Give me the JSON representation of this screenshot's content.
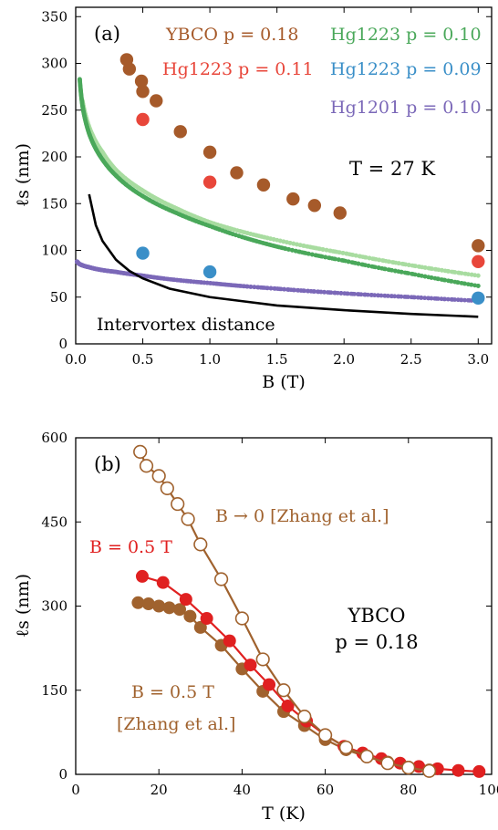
{
  "colors": {
    "ybco": "#a65a2a",
    "hg1223_011": "#e8463a",
    "hg1223_009": "#3a8fc8",
    "hg1223_010": "#4aa85a",
    "hg1223_010_light": "#a8dca0",
    "hg1201": "#7b68b8",
    "intervortex": "#000000",
    "ybco_b05": "#e02020",
    "zhang": "#a0622e"
  },
  "chart_data": [
    {
      "type": "scatter",
      "panel_label": "(a)",
      "xlabel": "B (T)",
      "ylabel": "ℓs (nm)",
      "xlim": [
        0,
        3.1
      ],
      "ylim": [
        0,
        360
      ],
      "x_ticks": [
        "0.0",
        "0.5",
        "1.0",
        "1.5",
        "2.0",
        "2.5",
        "3.0"
      ],
      "y_ticks": [
        "0",
        "50",
        "100",
        "150",
        "200",
        "250",
        "300",
        "350"
      ],
      "annotation": "T = 27 K",
      "curve_label": "Intervortex distance",
      "legend": [
        {
          "text": "YBCO p = 0.18",
          "color": "#a65a2a"
        },
        {
          "text": "Hg1223 p = 0.10",
          "color": "#4aa85a"
        },
        {
          "text": "Hg1223 p = 0.11",
          "color": "#e8463a"
        },
        {
          "text": "Hg1223 p = 0.09",
          "color": "#3a8fc8"
        },
        {
          "text": "Hg1201 p = 0.10",
          "color": "#7b68b8"
        }
      ],
      "series": [
        {
          "name": "YBCO p = 0.18",
          "kind": "points",
          "color": "#a65a2a",
          "x": [
            0.38,
            0.4,
            0.49,
            0.5,
            0.6,
            0.78,
            1.0,
            1.2,
            1.4,
            1.62,
            1.78,
            1.97,
            3.0
          ],
          "y": [
            304,
            294,
            281,
            270,
            260,
            227,
            205,
            183,
            170,
            155,
            148,
            140,
            105
          ]
        },
        {
          "name": "Hg1223 p = 0.11",
          "kind": "points",
          "color": "#e8463a",
          "x": [
            0.5,
            1.0,
            3.0
          ],
          "y": [
            240,
            173,
            88
          ]
        },
        {
          "name": "Hg1223 p = 0.09",
          "kind": "points",
          "color": "#3a8fc8",
          "x": [
            0.5,
            1.0,
            3.0
          ],
          "y": [
            97,
            77,
            49
          ]
        },
        {
          "name": "Hg1223 p = 0.10",
          "kind": "dense",
          "color": "#a8dca0",
          "x": [
            0.05,
            0.1,
            0.2,
            0.3,
            0.5,
            0.75,
            1.0,
            1.5,
            2.0,
            2.5,
            3.0
          ],
          "y": [
            260,
            232,
            205,
            186,
            164,
            145,
            130,
            111,
            97,
            84,
            73
          ]
        },
        {
          "name": "Hg1223 p = 0.10",
          "kind": "dense",
          "color": "#4aa85a",
          "x": [
            0.03,
            0.05,
            0.1,
            0.2,
            0.3,
            0.5,
            0.75,
            1.0,
            1.5,
            2.0,
            2.5,
            3.0
          ],
          "y": [
            283,
            255,
            225,
            197,
            180,
            158,
            140,
            126,
            104,
            89,
            75,
            62
          ]
        },
        {
          "name": "Hg1201 p = 0.10",
          "kind": "dense",
          "color": "#7b68b8",
          "x": [
            0.01,
            0.05,
            0.1,
            0.3,
            0.5,
            1.0,
            1.5,
            2.0,
            2.5,
            3.0
          ],
          "y": [
            88,
            84,
            82,
            77,
            73,
            65,
            59,
            54,
            50,
            46
          ]
        },
        {
          "name": "Intervortex distance",
          "kind": "line",
          "color": "#000000",
          "x": [
            0.1,
            0.15,
            0.2,
            0.3,
            0.4,
            0.5,
            0.7,
            1.0,
            1.5,
            2.0,
            2.5,
            3.0
          ],
          "y": [
            160,
            127,
            110,
            90,
            78,
            70,
            59,
            50,
            41,
            36,
            32,
            29
          ]
        }
      ]
    },
    {
      "type": "line",
      "panel_label": "(b)",
      "xlabel": "T (K)",
      "ylabel": "ℓs (nm)",
      "xlim": [
        0,
        100
      ],
      "ylim": [
        0,
        600
      ],
      "x_ticks": [
        "0",
        "20",
        "40",
        "60",
        "80",
        "100"
      ],
      "y_ticks": [
        "0",
        "150",
        "300",
        "450",
        "600"
      ],
      "annotation_line1": "YBCO",
      "annotation_line2": "p = 0.18",
      "labels": {
        "zhang_b0": "B → 0 [Zhang et al.]",
        "b05": "B = 0.5 T",
        "zhang_b05_line1": "B = 0.5 T",
        "zhang_b05_line2": "[Zhang et al.]"
      },
      "series": [
        {
          "name": "B → 0 [Zhang et al.]",
          "marker": "open",
          "color": "#a0622e",
          "x": [
            15.5,
            17,
            20,
            22,
            24.5,
            27,
            30,
            35,
            40,
            45,
            50,
            55,
            60,
            65,
            70,
            75,
            80,
            85
          ],
          "y": [
            575,
            550,
            532,
            510,
            482,
            455,
            410,
            348,
            278,
            205,
            150,
            103,
            70,
            48,
            32,
            20,
            12,
            6
          ]
        },
        {
          "name": "B = 0.5 T",
          "marker": "filled",
          "color": "#e02020",
          "x": [
            16,
            21,
            26.5,
            31.5,
            37,
            42,
            46.5,
            51,
            55.5,
            60,
            64.5,
            69,
            73.5,
            78,
            82.5,
            87,
            92,
            97
          ],
          "y": [
            353,
            342,
            312,
            278,
            238,
            195,
            160,
            122,
            95,
            70,
            50,
            38,
            28,
            20,
            14,
            10,
            7,
            5
          ]
        },
        {
          "name": "B = 0.5 T [Zhang et al.]",
          "marker": "filled",
          "color": "#a0622e",
          "x": [
            15,
            17.5,
            20,
            22.5,
            25,
            27.5,
            30,
            35,
            40,
            45,
            50,
            55,
            60,
            65,
            70,
            75,
            80,
            85
          ],
          "y": [
            306,
            304,
            300,
            297,
            294,
            282,
            262,
            230,
            188,
            148,
            112,
            87,
            62,
            44,
            31,
            22,
            13,
            8
          ]
        }
      ]
    }
  ]
}
